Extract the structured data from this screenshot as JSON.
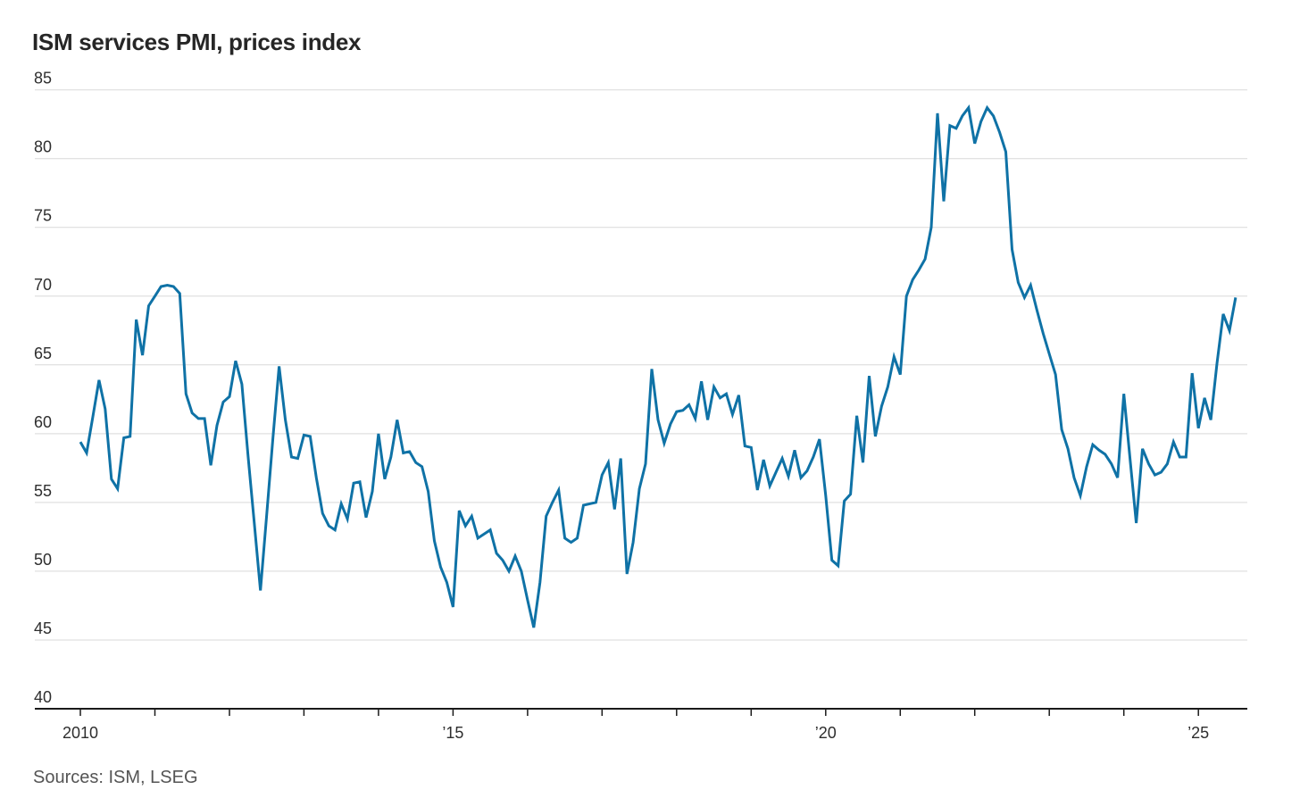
{
  "page": {
    "title": "ISM services PMI, prices index",
    "source_note": "Sources: ISM, LSEG"
  },
  "chart_data": {
    "type": "line",
    "title": "ISM services PMI, prices index",
    "xlabel": "",
    "ylabel": "",
    "ylim": [
      40,
      85
    ],
    "y_ticks": [
      40,
      45,
      50,
      55,
      60,
      65,
      70,
      75,
      80,
      85
    ],
    "grid": "horizontal-light",
    "legend_position": "none",
    "x_axis": {
      "start_year": 2010,
      "end_year": 2025,
      "tick_years": [
        2010,
        2011,
        2012,
        2013,
        2014,
        2015,
        2016,
        2017,
        2018,
        2019,
        2020,
        2021,
        2022,
        2023,
        2024,
        2025
      ],
      "labeled_ticks": {
        "2010": "2010",
        "2015": "’15",
        "2020": "’20",
        "2025": "’25"
      }
    },
    "series": [
      {
        "name": "ISM services PMI, prices index",
        "color": "#0f72a6",
        "frequency": "monthly",
        "start": "2010-01",
        "end": "2025-07",
        "values": [
          59.4,
          58.6,
          61.2,
          63.9,
          61.8,
          56.7,
          56.0,
          59.7,
          59.8,
          68.3,
          65.7,
          69.3,
          70.0,
          70.7,
          70.8,
          70.7,
          70.2,
          62.9,
          61.5,
          61.1,
          61.1,
          57.7,
          60.6,
          62.3,
          62.7,
          65.3,
          63.6,
          58.4,
          53.5,
          48.6,
          54.1,
          59.7,
          64.9,
          61.0,
          58.3,
          58.2,
          59.9,
          59.8,
          56.8,
          54.2,
          53.3,
          53.0,
          54.9,
          53.8,
          56.4,
          56.5,
          53.9,
          55.8,
          60.0,
          56.7,
          58.3,
          61.0,
          58.6,
          58.7,
          57.9,
          57.6,
          55.8,
          52.2,
          50.3,
          49.2,
          47.4,
          54.4,
          53.3,
          54.0,
          52.4,
          52.7,
          53.0,
          51.3,
          50.8,
          50.0,
          51.1,
          50.0,
          47.9,
          45.9,
          49.2,
          54.0,
          55.0,
          55.9,
          52.4,
          52.1,
          52.4,
          54.8,
          54.9,
          55.0,
          57.0,
          57.9,
          54.5,
          58.2,
          49.8,
          52.1,
          56.0,
          57.8,
          64.7,
          61.0,
          59.3,
          60.7,
          61.6,
          61.7,
          62.1,
          61.1,
          63.8,
          61.0,
          63.4,
          62.6,
          62.9,
          61.4,
          62.8,
          59.1,
          59.0,
          55.9,
          58.1,
          56.2,
          57.2,
          58.2,
          56.9,
          58.8,
          56.8,
          57.3,
          58.3,
          59.6,
          55.5,
          50.8,
          50.4,
          55.1,
          55.6,
          61.3,
          57.9,
          64.2,
          59.8,
          62.0,
          63.4,
          65.6,
          64.3,
          70.0,
          71.2,
          71.9,
          72.7,
          75.0,
          83.3,
          76.9,
          82.4,
          82.2,
          83.1,
          83.7,
          81.1,
          82.7,
          83.7,
          83.1,
          81.9,
          80.5,
          73.4,
          71.0,
          69.9,
          70.8,
          69.0,
          67.3,
          65.8,
          64.3,
          60.3,
          58.9,
          56.8,
          55.5,
          57.6,
          59.2,
          58.8,
          58.5,
          57.8,
          56.8,
          62.9,
          58.2,
          53.5,
          58.9,
          57.8,
          57.0,
          57.2,
          57.8,
          59.4,
          58.3,
          58.3,
          64.4,
          60.4,
          62.6,
          61.0,
          65.1,
          68.7,
          67.5,
          69.9
        ]
      }
    ]
  }
}
